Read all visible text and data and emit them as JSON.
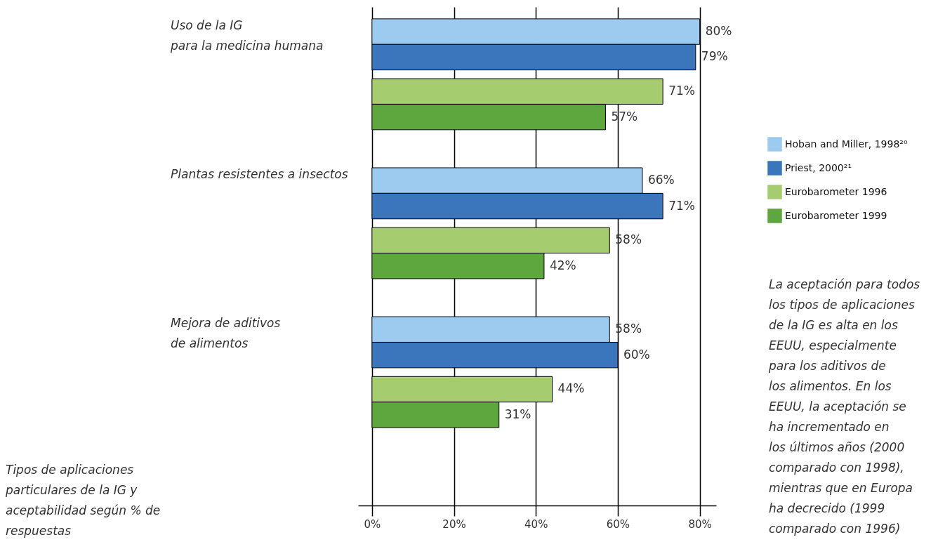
{
  "chart_data": {
    "type": "bar",
    "orientation": "horizontal",
    "categories": [
      "Uso de la IG\npara la medicina humana",
      "Plantas resistentes a insectos",
      "Mejora de aditivos\nde alimentos"
    ],
    "series": [
      {
        "name": "Hoban and Miller, 1998²⁰",
        "color": "#9dcbf0",
        "values": [
          80,
          66,
          58
        ],
        "value_labels": [
          "80%",
          "66%",
          "58%"
        ]
      },
      {
        "name": "Priest, 2000²¹",
        "color": "#3b75bb",
        "values": [
          79,
          71,
          60
        ],
        "value_labels": [
          "79%",
          "71%",
          "60%"
        ]
      },
      {
        "name": "Eurobarometer 1996",
        "color": "#a5cd70",
        "values": [
          71,
          58,
          44
        ],
        "value_labels": [
          "71%",
          "58%",
          "44%"
        ]
      },
      {
        "name": "Eurobarometer 1999",
        "color": "#5ea63e",
        "values": [
          57,
          42,
          31
        ],
        "value_labels": [
          "57%",
          "42%",
          "31%"
        ]
      }
    ],
    "xlim": [
      -3.4,
      84
    ],
    "xticks": [
      {
        "value": 0,
        "label": "0%"
      },
      {
        "value": 20,
        "label": "20%"
      },
      {
        "value": 40,
        "label": "40%"
      },
      {
        "value": 60,
        "label": "60%"
      },
      {
        "value": 80,
        "label": "80%"
      }
    ],
    "grid": "x",
    "legend": "right",
    "annotations": [
      "La aceptación para todos\nlos tipos de aplicaciones\nde la IG es alta en los\nEEUU, especialmente\npara los aditivos de\nlos alimentos. En los\nEEUU, la aceptación se\nha incrementado en\nlos últimos años (2000\ncomparado con 1998),\nmientras que en Europa\nha decrecido (1999\ncomparado con 1996)",
      "Tipos de aplicaciones\nparticulares de la IG  y\naceptabilidad según % de\nrespuestas"
    ]
  }
}
